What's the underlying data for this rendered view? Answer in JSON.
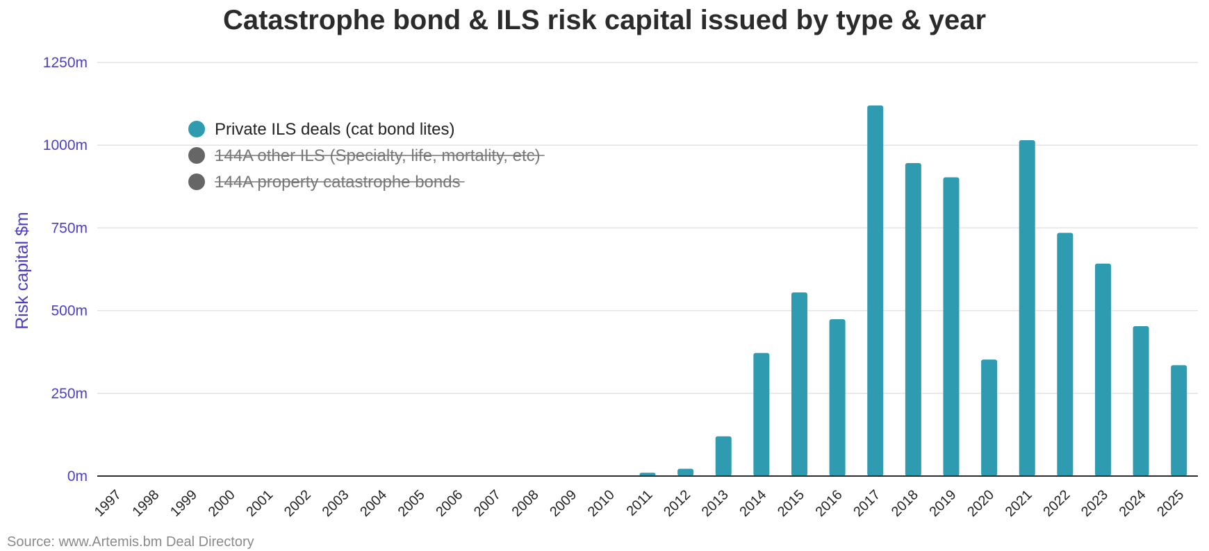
{
  "chart_data": {
    "type": "bar",
    "title": "Catastrophe bond & ILS risk capital issued by type & year",
    "ylabel": "Risk capital $m",
    "xlabel": "",
    "ylim": [
      0,
      1250
    ],
    "yticks": [
      0,
      250,
      500,
      750,
      1000,
      1250
    ],
    "ytick_labels": [
      "0m",
      "250m",
      "500m",
      "750m",
      "1000m",
      "1250m"
    ],
    "grid": true,
    "legend_position": "top-left",
    "categories": [
      "1997",
      "1998",
      "1999",
      "2000",
      "2001",
      "2002",
      "2003",
      "2004",
      "2005",
      "2006",
      "2007",
      "2008",
      "2009",
      "2010",
      "2011",
      "2012",
      "2013",
      "2014",
      "2015",
      "2016",
      "2017",
      "2018",
      "2019",
      "2020",
      "2021",
      "2022",
      "2023",
      "2024",
      "2025"
    ],
    "series": [
      {
        "name": "Private ILS deals (cat bond lites)",
        "visible": true,
        "color": "#2e9bb0",
        "values": [
          0,
          0,
          0,
          0,
          0,
          0,
          0,
          0,
          0,
          0,
          0,
          0,
          0,
          0,
          10,
          22,
          120,
          372,
          555,
          474,
          1120,
          946,
          903,
          352,
          1015,
          735,
          642,
          453,
          335
        ]
      },
      {
        "name": "144A other ILS (Specialty, life, mortality, etc)",
        "visible": false,
        "color": "#666666"
      },
      {
        "name": "144A property catastrophe bonds",
        "visible": false,
        "color": "#666666"
      }
    ],
    "source": "Source: www.Artemis.bm Deal Directory"
  },
  "colors": {
    "axis_label": "#4b3fc6",
    "grid": "#e3e3e3",
    "baseline": "#2b2b2b",
    "legend_hidden_text": "#777777",
    "legend_visible_text": "#222222"
  }
}
